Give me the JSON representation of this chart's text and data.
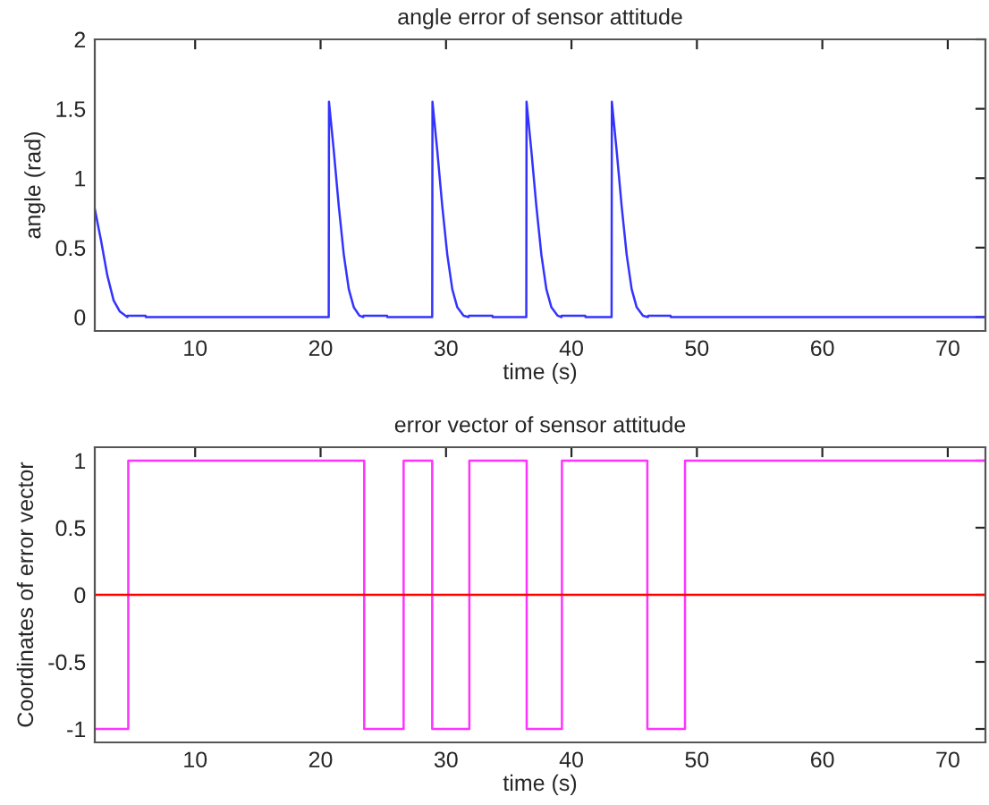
{
  "chart_data": [
    {
      "type": "line",
      "title": "angle error of sensor attitude",
      "xlabel": "time (s)",
      "ylabel": "angle (rad)",
      "series": [
        {
          "color": "#3333ff",
          "x": [
            2,
            2.5,
            3,
            3.5,
            4,
            4.6,
            4.62,
            6.05,
            6.07,
            20.65,
            20.67,
            21.05,
            21.45,
            21.85,
            22.25,
            22.65,
            23.1,
            23.4,
            23.42,
            25.3,
            25.32,
            28.9,
            28.92,
            29.3,
            29.7,
            30.1,
            30.5,
            30.9,
            31.4,
            31.8,
            31.82,
            33.7,
            33.72,
            36.4,
            36.42,
            36.8,
            37.2,
            37.6,
            38.0,
            38.4,
            38.9,
            39.2,
            39.22,
            41.1,
            41.12,
            43.2,
            43.22,
            43.6,
            44.0,
            44.4,
            44.8,
            45.2,
            45.7,
            46.1,
            46.12,
            47.9,
            47.92,
            73
          ],
          "values": [
            0.78,
            0.55,
            0.3,
            0.12,
            0.04,
            0,
            0.01,
            0.01,
            0,
            0,
            1.55,
            1.2,
            0.8,
            0.45,
            0.2,
            0.07,
            0.01,
            0,
            0.01,
            0.01,
            0,
            0,
            1.55,
            1.2,
            0.8,
            0.45,
            0.2,
            0.07,
            0.01,
            0,
            0.01,
            0.01,
            0,
            0,
            1.55,
            1.2,
            0.8,
            0.45,
            0.2,
            0.07,
            0.01,
            0,
            0.01,
            0.01,
            0,
            0,
            1.55,
            1.2,
            0.8,
            0.45,
            0.2,
            0.07,
            0.01,
            0,
            0.01,
            0.01,
            0,
            0
          ]
        }
      ],
      "xlim": [
        2,
        73
      ],
      "xticks": [
        10,
        20,
        30,
        40,
        50,
        60,
        70
      ],
      "ylim": [
        -0.1,
        2
      ],
      "yticks": [
        0,
        0.5,
        1,
        1.5,
        2
      ],
      "grid": false,
      "legend": false
    },
    {
      "type": "step",
      "title": "error vector of sensor attitude",
      "xlabel": "time (s)",
      "ylabel": "Coordinates of error vector",
      "series": [
        {
          "color": "#ff33ff",
          "x": [
            2,
            4.67,
            23.48,
            26.62,
            28.9,
            31.86,
            36.43,
            39.24,
            46.05,
            49.05,
            73
          ],
          "values": [
            -1,
            1,
            -1,
            1,
            -1,
            1,
            -1,
            1,
            -1,
            1,
            1
          ]
        }
      ],
      "ref_lines": [
        {
          "axis": "y",
          "value": 0,
          "color": "#ff0000",
          "line_style": "solid"
        }
      ],
      "xlim": [
        2,
        73
      ],
      "xticks": [
        10,
        20,
        30,
        40,
        50,
        60,
        70
      ],
      "ylim": [
        -1.1,
        1.1
      ],
      "yticks": [
        -1,
        -0.5,
        0,
        0.5,
        1
      ],
      "grid": false,
      "legend": false
    }
  ]
}
